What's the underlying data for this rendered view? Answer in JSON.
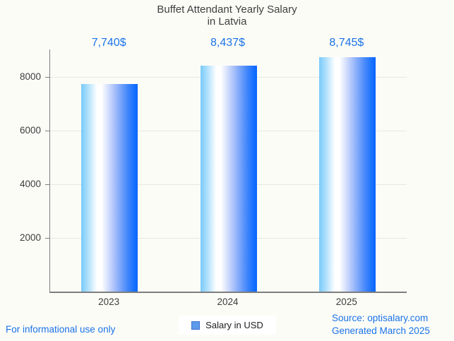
{
  "title": {
    "line1": "Buffet Attendant Yearly Salary",
    "line2": "in Latvia"
  },
  "chart_data": {
    "type": "bar",
    "title": "Buffet Attendant Yearly Salary in Latvia",
    "categories": [
      "2023",
      "2024",
      "2025"
    ],
    "series": [
      {
        "name": "Salary in USD",
        "values": [
          7740,
          8437,
          8745
        ]
      }
    ],
    "value_labels": [
      "7,740$",
      "8,437$",
      "8,745$"
    ],
    "xlabel": "",
    "ylabel": "",
    "ylim": [
      0,
      9040
    ],
    "yticks": [
      2000,
      4000,
      6000,
      8000
    ],
    "grid": true,
    "legend_position": "bottom-center",
    "bar_gradient_hint": "light-blue to white to strong blue, horizontal"
  },
  "legend": {
    "label": "Salary in USD",
    "marker_color": "#5b9bea",
    "marker_border_color": "#3f6fd1"
  },
  "footer": {
    "disclaimer": "For informational use only",
    "source": "Source: optisalary.com",
    "generated": "Generated March 2025"
  },
  "colors": {
    "accent_blue": "#1a73e8",
    "title_text": "#3e3e3e",
    "axis": "#7e7e7e",
    "gridline": "#e8e8e3",
    "background": "#fcfcf7",
    "bar_left": "#79cafa",
    "bar_middle": "#ffffff",
    "bar_right": "#0a66fb"
  }
}
